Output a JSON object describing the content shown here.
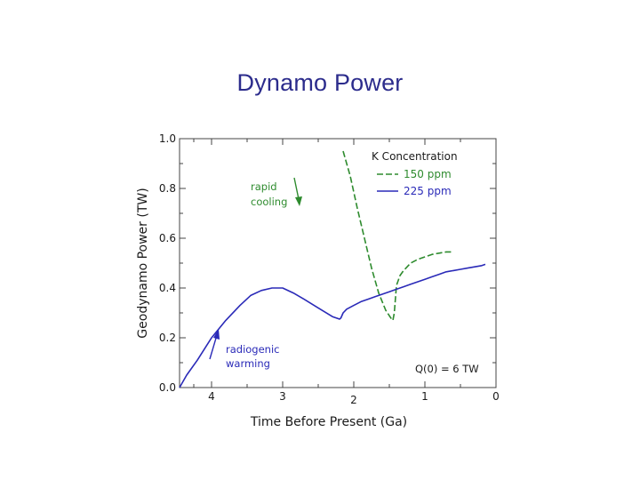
{
  "slide": {
    "title": "Dynamo Power"
  },
  "chart_data": {
    "type": "line",
    "title": "",
    "xlabel": "Time Before Present  (Ga)",
    "ylabel": "Geodynamo Power  (TW)",
    "xlim": [
      4.45,
      0
    ],
    "ylim": [
      0,
      1.0
    ],
    "x_ticks": [
      4,
      3,
      2,
      1,
      0
    ],
    "x_tick_labels": [
      "4",
      "3",
      "2",
      "1",
      "0"
    ],
    "y_ticks": [
      0.0,
      0.2,
      0.4,
      0.6,
      0.8,
      1.0
    ],
    "y_tick_labels": [
      "0.0",
      "0.2",
      "0.4",
      "0.6",
      "0.8",
      "1.0"
    ],
    "grid": false,
    "legend": {
      "title": "K Concentration",
      "placement": "top-right"
    },
    "series": [
      {
        "name": "150 ppm",
        "color": "#2e8b2e",
        "style": "dashed",
        "x": [
          2.15,
          2.05,
          1.95,
          1.85,
          1.75,
          1.65,
          1.55,
          1.48,
          1.45,
          1.43,
          1.4,
          1.35,
          1.3,
          1.2,
          1.1,
          1.0,
          0.9,
          0.8,
          0.7,
          0.62
        ],
        "y": [
          0.95,
          0.85,
          0.72,
          0.6,
          0.48,
          0.38,
          0.31,
          0.28,
          0.27,
          0.3,
          0.41,
          0.45,
          0.47,
          0.5,
          0.515,
          0.525,
          0.535,
          0.54,
          0.545,
          0.545
        ]
      },
      {
        "name": "225 ppm",
        "color": "#2a2ab8",
        "style": "solid",
        "x": [
          4.45,
          4.35,
          4.2,
          4.0,
          3.8,
          3.6,
          3.45,
          3.3,
          3.15,
          3.0,
          2.85,
          2.7,
          2.5,
          2.3,
          2.2,
          2.18,
          2.15,
          2.1,
          2.0,
          1.9,
          1.8,
          1.7,
          1.6,
          1.5,
          1.4,
          1.3,
          1.2,
          1.1,
          1.0,
          0.9,
          0.8,
          0.7,
          0.6,
          0.5,
          0.4,
          0.3,
          0.2,
          0.15
        ],
        "y": [
          0.0,
          0.05,
          0.11,
          0.2,
          0.27,
          0.33,
          0.37,
          0.39,
          0.4,
          0.4,
          0.38,
          0.355,
          0.32,
          0.285,
          0.275,
          0.28,
          0.3,
          0.315,
          0.33,
          0.345,
          0.355,
          0.365,
          0.375,
          0.385,
          0.395,
          0.405,
          0.415,
          0.425,
          0.435,
          0.445,
          0.455,
          0.465,
          0.47,
          0.475,
          0.48,
          0.485,
          0.49,
          0.495
        ]
      }
    ],
    "annotations": [
      {
        "text_lines": [
          "rapid",
          "cooling"
        ],
        "color": "#2e8b2e",
        "arrow": "down"
      },
      {
        "text_lines": [
          "radiogenic",
          "warming"
        ],
        "color": "#2a2ab8",
        "arrow": "up"
      },
      {
        "text": "Q(0) = 6 TW",
        "color": "#1a1a1a"
      }
    ]
  }
}
